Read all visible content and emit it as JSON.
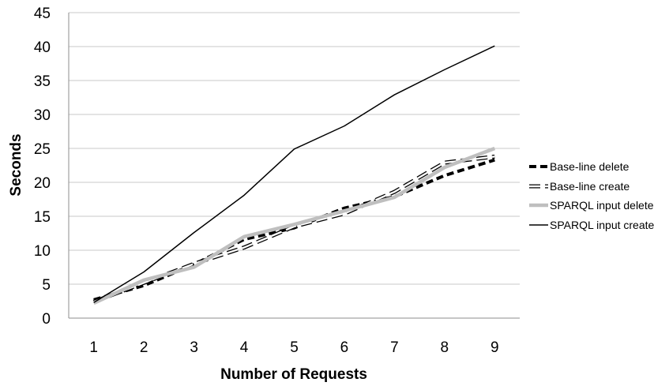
{
  "chart_data": {
    "type": "line",
    "xlabel": "Number of Requests",
    "ylabel": "Seconds",
    "x": [
      1,
      2,
      3,
      4,
      5,
      6,
      7,
      8,
      9
    ],
    "xlim": [
      0.5,
      9.5
    ],
    "ylim": [
      0,
      45
    ],
    "yticks": [
      0,
      5,
      10,
      15,
      20,
      25,
      30,
      35,
      40,
      45
    ],
    "grid": "horizontal",
    "legend": "right",
    "series": [
      {
        "name": "Base-line delete",
        "values": [
          2.7,
          4.8,
          7.9,
          11.6,
          13.3,
          16.2,
          17.9,
          21.0,
          23.3
        ],
        "color": "#000000",
        "style": "dashed-bold"
      },
      {
        "name": "Base-line create",
        "values": [
          2.4,
          5.2,
          8.0,
          10.4,
          13.5,
          15.4,
          18.6,
          22.9,
          23.8
        ],
        "color": "#000000",
        "style": "dashed-outline"
      },
      {
        "name": "SPARQL input delete",
        "values": [
          2.2,
          5.6,
          7.5,
          12.0,
          13.8,
          15.8,
          17.8,
          22.2,
          25.0
        ],
        "color": "#bfbfbf",
        "style": "solid-bold"
      },
      {
        "name": "SPARQL input create",
        "values": [
          2.3,
          6.8,
          12.6,
          18.1,
          24.9,
          28.3,
          32.9,
          36.6,
          40.1
        ],
        "color": "#000000",
        "style": "solid-thin"
      }
    ]
  }
}
